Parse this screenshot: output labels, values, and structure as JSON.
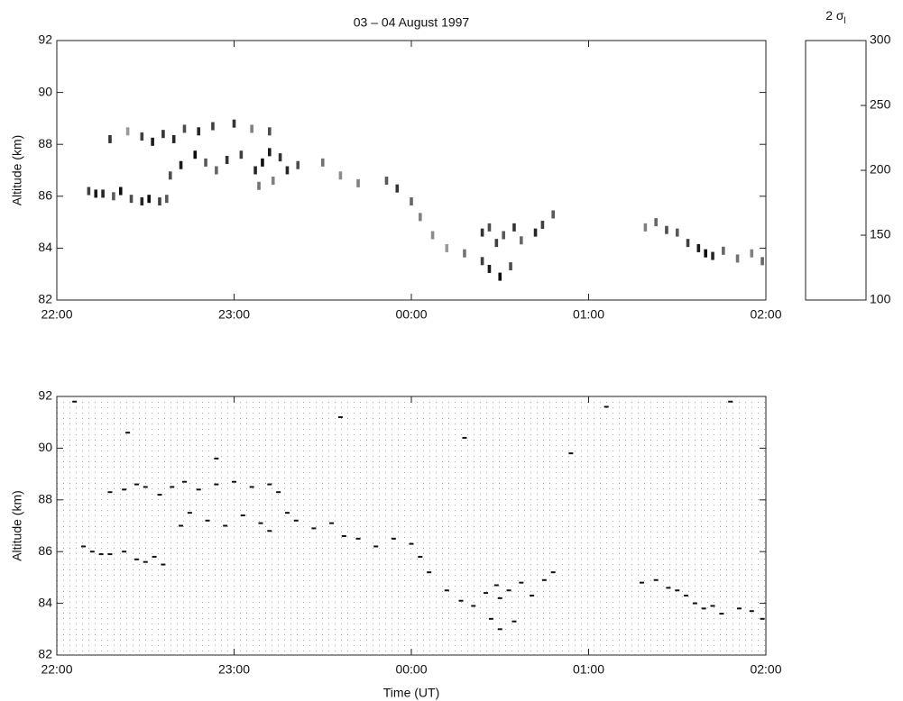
{
  "chart_data": [
    {
      "type": "heatmap",
      "title": "03 – 04 August 1997",
      "ylabel": "Altitude (km)",
      "xlim": [
        22,
        26
      ],
      "ylim": [
        82,
        92
      ],
      "xticks": [
        {
          "value": 22,
          "label": "22:00"
        },
        {
          "value": 23,
          "label": "23:00"
        },
        {
          "value": 24,
          "label": "00:00"
        },
        {
          "value": 25,
          "label": "01:00"
        },
        {
          "value": 26,
          "label": "02:00"
        }
      ],
      "yticks": [
        82,
        84,
        86,
        88,
        90,
        92
      ],
      "x": [
        22.18,
        22.22,
        22.26,
        22.32,
        22.36,
        22.42,
        22.48,
        22.52,
        22.58,
        22.62,
        22.3,
        22.4,
        22.48,
        22.54,
        22.6,
        22.66,
        22.72,
        22.8,
        22.88,
        23.0,
        23.1,
        23.2,
        22.64,
        22.7,
        22.78,
        22.84,
        22.9,
        22.96,
        23.04,
        23.12,
        23.16,
        23.2,
        23.26,
        23.3,
        23.36,
        23.14,
        23.22,
        23.5,
        23.6,
        23.7,
        23.86,
        23.92,
        24.0,
        24.05,
        24.12,
        24.2,
        24.3,
        24.4,
        24.44,
        24.48,
        24.52,
        24.58,
        24.62,
        24.7,
        24.74,
        24.8,
        24.4,
        24.44,
        24.5,
        24.56,
        25.32,
        25.38,
        25.44,
        25.5,
        25.56,
        25.62,
        25.66,
        25.7,
        25.76,
        25.84,
        25.92,
        25.98
      ],
      "y": [
        86.2,
        86.1,
        86.1,
        86.0,
        86.2,
        85.9,
        85.8,
        85.9,
        85.8,
        85.9,
        88.2,
        88.5,
        88.3,
        88.1,
        88.4,
        88.2,
        88.6,
        88.5,
        88.7,
        88.8,
        88.6,
        88.5,
        86.8,
        87.2,
        87.6,
        87.3,
        87.0,
        87.4,
        87.6,
        87.0,
        87.3,
        87.7,
        87.5,
        87.0,
        87.2,
        86.4,
        86.6,
        87.3,
        86.8,
        86.5,
        86.6,
        86.3,
        85.8,
        85.2,
        84.5,
        84.0,
        83.8,
        84.6,
        84.8,
        84.2,
        84.5,
        84.8,
        84.3,
        84.6,
        84.9,
        85.3,
        83.5,
        83.2,
        82.9,
        83.3,
        84.8,
        85.0,
        84.7,
        84.6,
        84.2,
        84.0,
        83.8,
        83.7,
        83.9,
        83.6,
        83.8,
        83.5
      ],
      "values": [
        150,
        120,
        130,
        170,
        110,
        160,
        130,
        110,
        150,
        170,
        140,
        220,
        150,
        120,
        140,
        130,
        160,
        130,
        150,
        140,
        200,
        160,
        160,
        120,
        110,
        170,
        180,
        140,
        150,
        130,
        110,
        120,
        140,
        130,
        160,
        190,
        200,
        190,
        210,
        200,
        170,
        140,
        180,
        200,
        210,
        220,
        190,
        140,
        160,
        150,
        170,
        140,
        180,
        130,
        150,
        170,
        150,
        120,
        110,
        160,
        200,
        180,
        160,
        170,
        150,
        120,
        110,
        130,
        180,
        190,
        200,
        180
      ],
      "colorbar": {
        "label": "2 σ",
        "label_sub": "l",
        "lim": [
          100,
          300
        ],
        "ticks": [
          100,
          150,
          200,
          250,
          300
        ],
        "colors": [
          "#000000",
          "#ffffff"
        ]
      }
    },
    {
      "type": "scatter",
      "ylabel": "Altitude (km)",
      "xlabel": "Time (UT)",
      "color": "#111111",
      "xlim": [
        22,
        26
      ],
      "ylim": [
        82,
        92
      ],
      "xticks": [
        {
          "value": 22,
          "label": "22:00"
        },
        {
          "value": 23,
          "label": "23:00"
        },
        {
          "value": 24,
          "label": "00:00"
        },
        {
          "value": 25,
          "label": "01:00"
        },
        {
          "value": 26,
          "label": "02:00"
        }
      ],
      "yticks": [
        82,
        84,
        86,
        88,
        90,
        92
      ],
      "x": [
        22.15,
        22.2,
        22.25,
        22.3,
        22.38,
        22.45,
        22.5,
        22.55,
        22.6,
        22.3,
        22.38,
        22.45,
        22.5,
        22.58,
        22.65,
        22.72,
        22.8,
        22.9,
        23.0,
        23.1,
        23.2,
        23.25,
        22.7,
        22.75,
        22.85,
        22.95,
        23.05,
        23.15,
        23.2,
        23.3,
        23.35,
        23.45,
        23.55,
        23.62,
        23.7,
        23.8,
        23.9,
        24.0,
        24.05,
        24.1,
        24.2,
        24.28,
        24.35,
        24.42,
        24.48,
        24.5,
        24.55,
        24.62,
        24.68,
        24.75,
        24.8,
        24.45,
        24.5,
        24.58,
        25.3,
        25.38,
        25.45,
        25.5,
        25.55,
        25.6,
        25.65,
        25.7,
        25.75,
        25.85,
        25.92,
        25.98,
        22.1,
        22.4,
        22.9,
        23.6,
        24.3,
        24.9,
        25.1,
        25.8
      ],
      "y": [
        86.2,
        86.0,
        85.9,
        85.9,
        86.0,
        85.7,
        85.6,
        85.8,
        85.5,
        88.3,
        88.4,
        88.6,
        88.5,
        88.2,
        88.5,
        88.7,
        88.4,
        88.6,
        88.7,
        88.5,
        88.6,
        88.3,
        87.0,
        87.5,
        87.2,
        87.0,
        87.4,
        87.1,
        86.8,
        87.5,
        87.2,
        86.9,
        87.1,
        86.6,
        86.5,
        86.2,
        86.5,
        86.3,
        85.8,
        85.2,
        84.5,
        84.1,
        83.9,
        84.4,
        84.7,
        84.2,
        84.5,
        84.8,
        84.3,
        84.9,
        85.2,
        83.4,
        83.0,
        83.3,
        84.8,
        84.9,
        84.6,
        84.5,
        84.3,
        84.0,
        83.8,
        83.9,
        83.6,
        83.8,
        83.7,
        83.4,
        91.8,
        90.6,
        89.6,
        91.2,
        90.4,
        89.8,
        91.6,
        91.8
      ]
    }
  ]
}
